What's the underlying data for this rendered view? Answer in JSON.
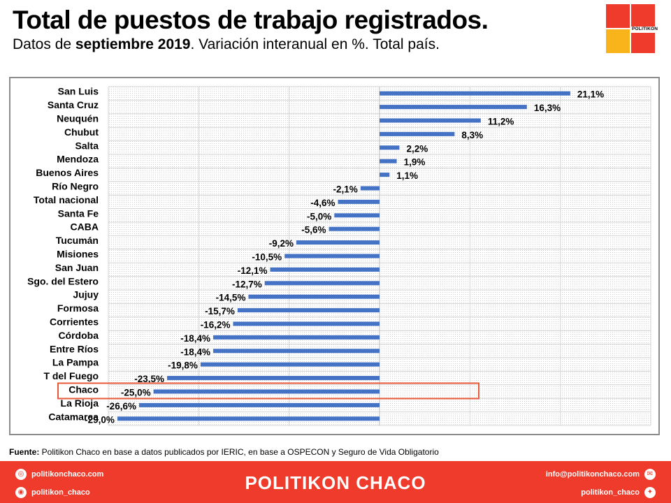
{
  "header": {
    "title": "Total de puestos de trabajo registrados.",
    "subtitle_pre": "Datos de ",
    "subtitle_bold": "septiembre 2019",
    "subtitle_post": ". Variación interanual en %. Total país."
  },
  "logo": {
    "word": "POLITIKON",
    "colors": {
      "red": "#ef3b2c",
      "yellow": "#f9b41b"
    }
  },
  "chart_data": {
    "type": "bar",
    "orientation": "horizontal",
    "title": "",
    "xlabel": "",
    "ylabel": "",
    "xlim": [
      -30,
      30
    ],
    "grid": true,
    "bar_color": "#4472c4",
    "highlight_color": "#e8593b",
    "highlight_category": "Chaco",
    "categories": [
      "San Luis",
      "Santa Cruz",
      "Neuquén",
      "Chubut",
      "Salta",
      "Mendoza",
      "Buenos Aires",
      "Río Negro",
      "Total nacional",
      "Santa Fe",
      "CABA",
      "Tucumán",
      "Misiones",
      "San Juan",
      "Sgo. del Estero",
      "Jujuy",
      "Formosa",
      "Corrientes",
      "Córdoba",
      "Entre Ríos",
      "La Pampa",
      "T del Fuego",
      "Chaco",
      "La Rioja",
      "Catamarca"
    ],
    "values": [
      21.1,
      16.3,
      11.2,
      8.3,
      2.2,
      1.9,
      1.1,
      -2.1,
      -4.6,
      -5.0,
      -5.6,
      -9.2,
      -10.5,
      -12.1,
      -12.7,
      -14.5,
      -15.7,
      -16.2,
      -18.4,
      -18.4,
      -19.8,
      -23.5,
      -25.0,
      -26.6,
      -29.0
    ],
    "labels": [
      "21,1%",
      "16,3%",
      "11,2%",
      "8,3%",
      "2,2%",
      "1,9%",
      "1,1%",
      "-2,1%",
      "-4,6%",
      "-5,0%",
      "-5,6%",
      "-9,2%",
      "-10,5%",
      "-12,1%",
      "-12,7%",
      "-14,5%",
      "-15,7%",
      "-16,2%",
      "-18,4%",
      "-18,4%",
      "-19,8%",
      "-23,5%",
      "-25,0%",
      "-26,6%",
      "-29,0%"
    ]
  },
  "source": {
    "label": "Fuente:",
    "text": " Politikon Chaco en base a datos publicados por IERIC, en base a OSPECON y Seguro de Vida Obligatorio"
  },
  "footer": {
    "brand": "POLITIKON CHACO",
    "website": "politikonchaco.com",
    "instagram": "politikon_chaco",
    "email": "info@politikonchaco.com",
    "twitter": "politikon_chaco",
    "icons": [
      "globe-icon",
      "instagram-icon",
      "mail-icon",
      "twitter-icon"
    ]
  }
}
